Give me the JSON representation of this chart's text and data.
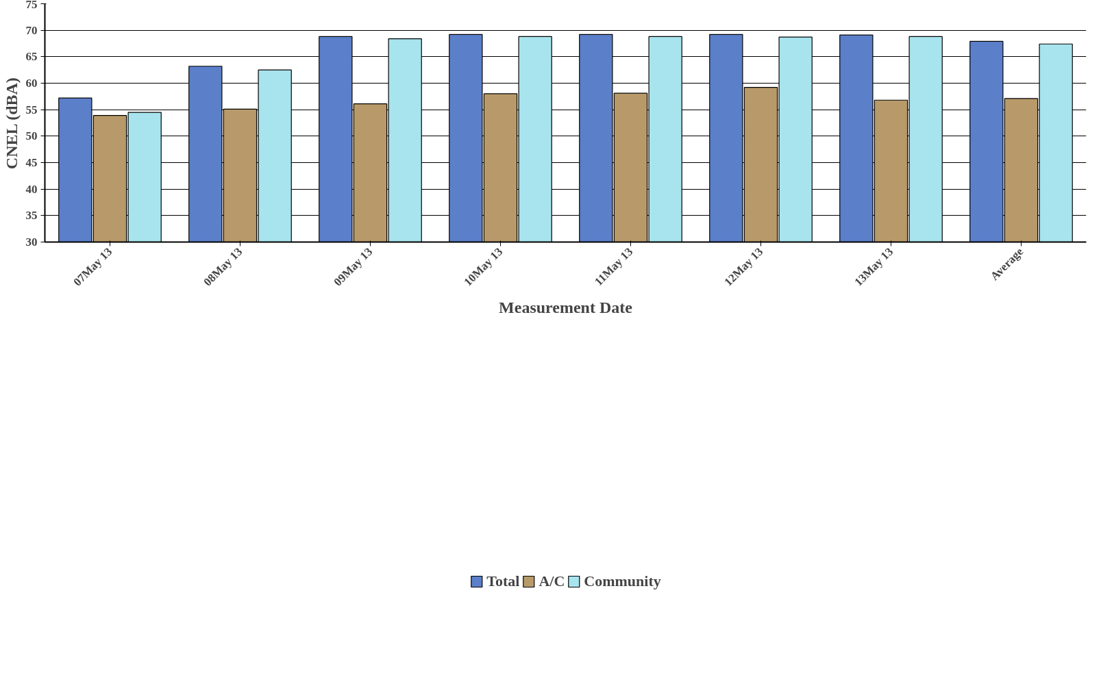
{
  "chart_data": {
    "type": "bar",
    "xlabel": "Measurement Date",
    "ylabel": "CNEL (dBA)",
    "categories": [
      "07May 13",
      "08May 13",
      "09May 13",
      "10May 13",
      "11May 13",
      "12May 13",
      "13May 13",
      "Average"
    ],
    "series": [
      {
        "name": "Total",
        "color": "#5b7fc9",
        "values": [
          57.2,
          63.2,
          68.8,
          69.2,
          69.2,
          69.2,
          69.1,
          67.9
        ]
      },
      {
        "name": "A/C",
        "color": "#b89a6a",
        "values": [
          53.9,
          55.1,
          56.1,
          58.0,
          58.1,
          59.2,
          56.8,
          57.1
        ]
      },
      {
        "name": "Community",
        "color": "#a8e4ee",
        "values": [
          54.5,
          62.5,
          68.4,
          68.8,
          68.8,
          68.7,
          68.8,
          67.4
        ]
      }
    ],
    "ylim": [
      30,
      75
    ],
    "yticks": [
      30,
      35,
      40,
      45,
      50,
      55,
      60,
      65,
      70,
      75
    ],
    "grid": "y",
    "legend": "bottom"
  }
}
